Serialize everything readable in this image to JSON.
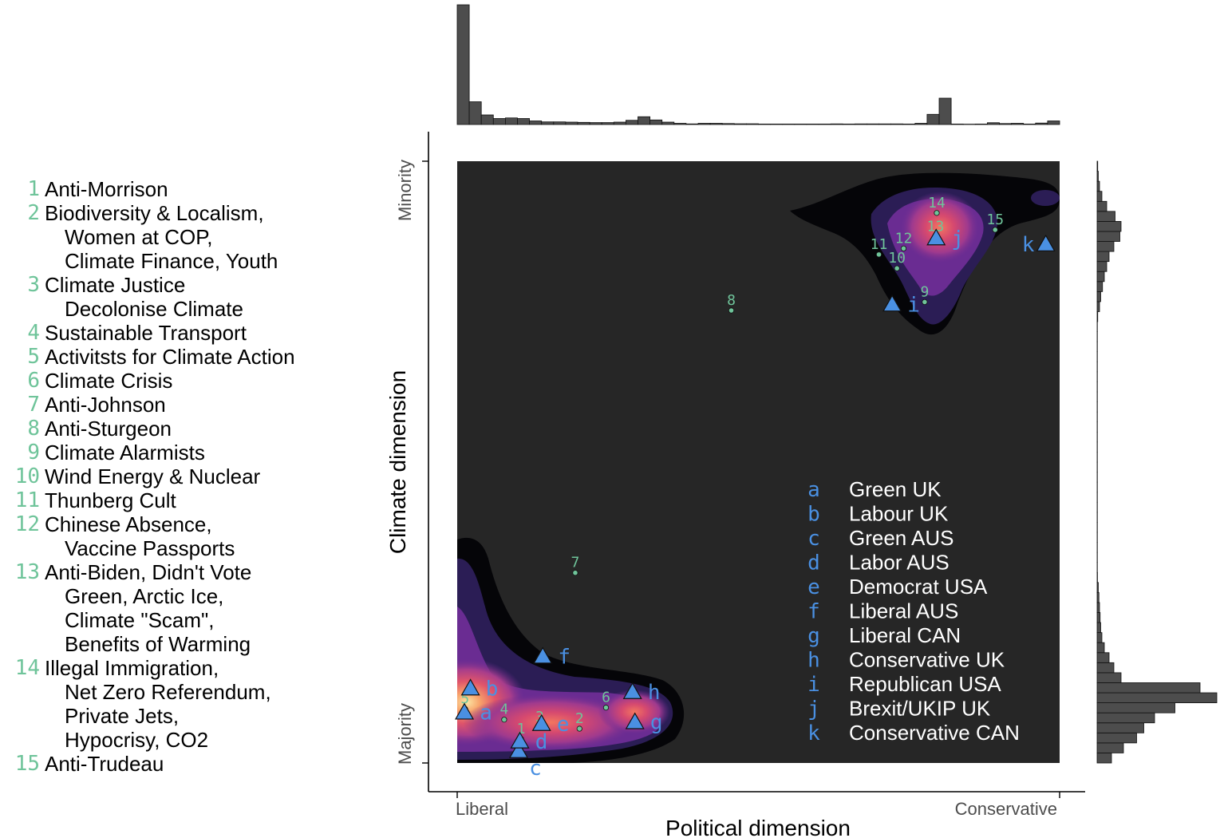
{
  "left_legend": [
    {
      "num": "1",
      "lines": [
        "Anti-Morrison"
      ]
    },
    {
      "num": "2",
      "lines": [
        "Biodiversity & Localism,",
        "Women at COP,",
        "Climate Finance, Youth"
      ]
    },
    {
      "num": "3",
      "lines": [
        "Climate Justice",
        "Decolonise Climate"
      ]
    },
    {
      "num": "4",
      "lines": [
        "Sustainable Transport"
      ]
    },
    {
      "num": "5",
      "lines": [
        "Activitsts for Climate Action"
      ]
    },
    {
      "num": "6",
      "lines": [
        "Climate Crisis"
      ]
    },
    {
      "num": "7",
      "lines": [
        "Anti-Johnson"
      ]
    },
    {
      "num": "8",
      "lines": [
        "Anti-Sturgeon"
      ]
    },
    {
      "num": "9",
      "lines": [
        "Climate Alarmists"
      ]
    },
    {
      "num": "10",
      "lines": [
        "Wind Energy & Nuclear"
      ]
    },
    {
      "num": "11",
      "lines": [
        "Thunberg Cult"
      ]
    },
    {
      "num": "12",
      "lines": [
        "Chinese Absence,",
        "Vaccine Passports"
      ]
    },
    {
      "num": "13",
      "lines": [
        "Anti-Biden, Didn't Vote",
        "Green, Arctic Ice,",
        "Climate \"Scam\",",
        "Benefits of Warming"
      ]
    },
    {
      "num": "14",
      "lines": [
        "Illegal Immigration,",
        "Net Zero Referendum,",
        "Private Jets,",
        "Hypocrisy, CO2"
      ]
    },
    {
      "num": "15",
      "lines": [
        "Anti-Trudeau"
      ]
    }
  ],
  "chart_data": {
    "type": "scatter",
    "xlabel": "Political dimension",
    "ylabel": "Climate dimension",
    "x_tick_labels": [
      "Liberal",
      "Conservative"
    ],
    "y_tick_labels": [
      "Majority",
      "Minority"
    ],
    "xlim": [
      0,
      1
    ],
    "ylim": [
      0,
      1
    ],
    "density_background": "#262626",
    "topic_color": "#6fc49a",
    "party_color": "#4a90e2",
    "topics": [
      {
        "label": "1",
        "x": 0.106,
        "y": 0.04
      },
      {
        "label": "2",
        "x": 0.203,
        "y": 0.057
      },
      {
        "label": "3",
        "x": 0.137,
        "y": 0.06
      },
      {
        "label": "4",
        "x": 0.078,
        "y": 0.072
      },
      {
        "label": "5",
        "x": 0.013,
        "y": 0.09
      },
      {
        "label": "6",
        "x": 0.247,
        "y": 0.092
      },
      {
        "label": "7",
        "x": 0.196,
        "y": 0.316
      },
      {
        "label": "8",
        "x": 0.455,
        "y": 0.752
      },
      {
        "label": "9",
        "x": 0.776,
        "y": 0.766
      },
      {
        "label": "10",
        "x": 0.73,
        "y": 0.822
      },
      {
        "label": "11",
        "x": 0.7,
        "y": 0.845
      },
      {
        "label": "12",
        "x": 0.741,
        "y": 0.855
      },
      {
        "label": "13",
        "x": 0.794,
        "y": 0.875
      },
      {
        "label": "14",
        "x": 0.796,
        "y": 0.914
      },
      {
        "label": "15",
        "x": 0.893,
        "y": 0.886
      }
    ],
    "parties": [
      {
        "letter": "a",
        "name": "Green UK",
        "x": 0.012,
        "y": 0.084
      },
      {
        "letter": "b",
        "name": "Labour UK",
        "x": 0.022,
        "y": 0.124
      },
      {
        "letter": "c",
        "name": "Green AUS",
        "x": 0.102,
        "y": 0.02
      },
      {
        "letter": "d",
        "name": "Labor AUS",
        "x": 0.104,
        "y": 0.036
      },
      {
        "letter": "e",
        "name": "Democrat USA",
        "x": 0.14,
        "y": 0.065
      },
      {
        "letter": "f",
        "name": "Liberal AUS",
        "x": 0.142,
        "y": 0.177
      },
      {
        "letter": "g",
        "name": "Liberal CAN",
        "x": 0.295,
        "y": 0.068
      },
      {
        "letter": "h",
        "name": "Conservative UK",
        "x": 0.291,
        "y": 0.118
      },
      {
        "letter": "i",
        "name": "Republican USA",
        "x": 0.722,
        "y": 0.762
      },
      {
        "letter": "j",
        "name": "Brexit/UKIP UK",
        "x": 0.795,
        "y": 0.872
      },
      {
        "letter": "k",
        "name": "Conservative CAN",
        "x": 0.977,
        "y": 0.862
      }
    ],
    "marginal_x": {
      "description": "histogram of political dimension",
      "values": [
        1.0,
        0.19,
        0.08,
        0.05,
        0.055,
        0.05,
        0.03,
        0.022,
        0.022,
        0.02,
        0.018,
        0.016,
        0.016,
        0.02,
        0.035,
        0.065,
        0.038,
        0.02,
        0.01,
        0.005,
        0.01,
        0.01,
        0.008,
        0.006,
        0.006,
        0.004,
        0.004,
        0.004,
        0.004,
        0.004,
        0.004,
        0.005,
        0.004,
        0.005,
        0.005,
        0.005,
        0.005,
        0.004,
        0.01,
        0.085,
        0.22,
        0.004,
        0.003,
        0.004,
        0.015,
        0.008,
        0.01,
        0.004,
        0.012,
        0.03
      ]
    },
    "marginal_y": {
      "description": "histogram of climate dimension (bottom to top)",
      "values": [
        0.12,
        0.22,
        0.33,
        0.39,
        0.48,
        0.65,
        1.0,
        0.86,
        0.2,
        0.14,
        0.1,
        0.06,
        0.04,
        0.03,
        0.025,
        0.02,
        0.015,
        0.01,
        0.003,
        0.002,
        0.002,
        0.002,
        0.002,
        0.002,
        0.002,
        0.002,
        0.002,
        0.002,
        0.002,
        0.002,
        0.002,
        0.002,
        0.002,
        0.002,
        0.002,
        0.002,
        0.002,
        0.002,
        0.002,
        0.002,
        0.002,
        0.002,
        0.002,
        0.002,
        0.005,
        0.02,
        0.03,
        0.045,
        0.06,
        0.08,
        0.1,
        0.14,
        0.19,
        0.2,
        0.15,
        0.08,
        0.04,
        0.02,
        0.01,
        0.005
      ]
    }
  }
}
